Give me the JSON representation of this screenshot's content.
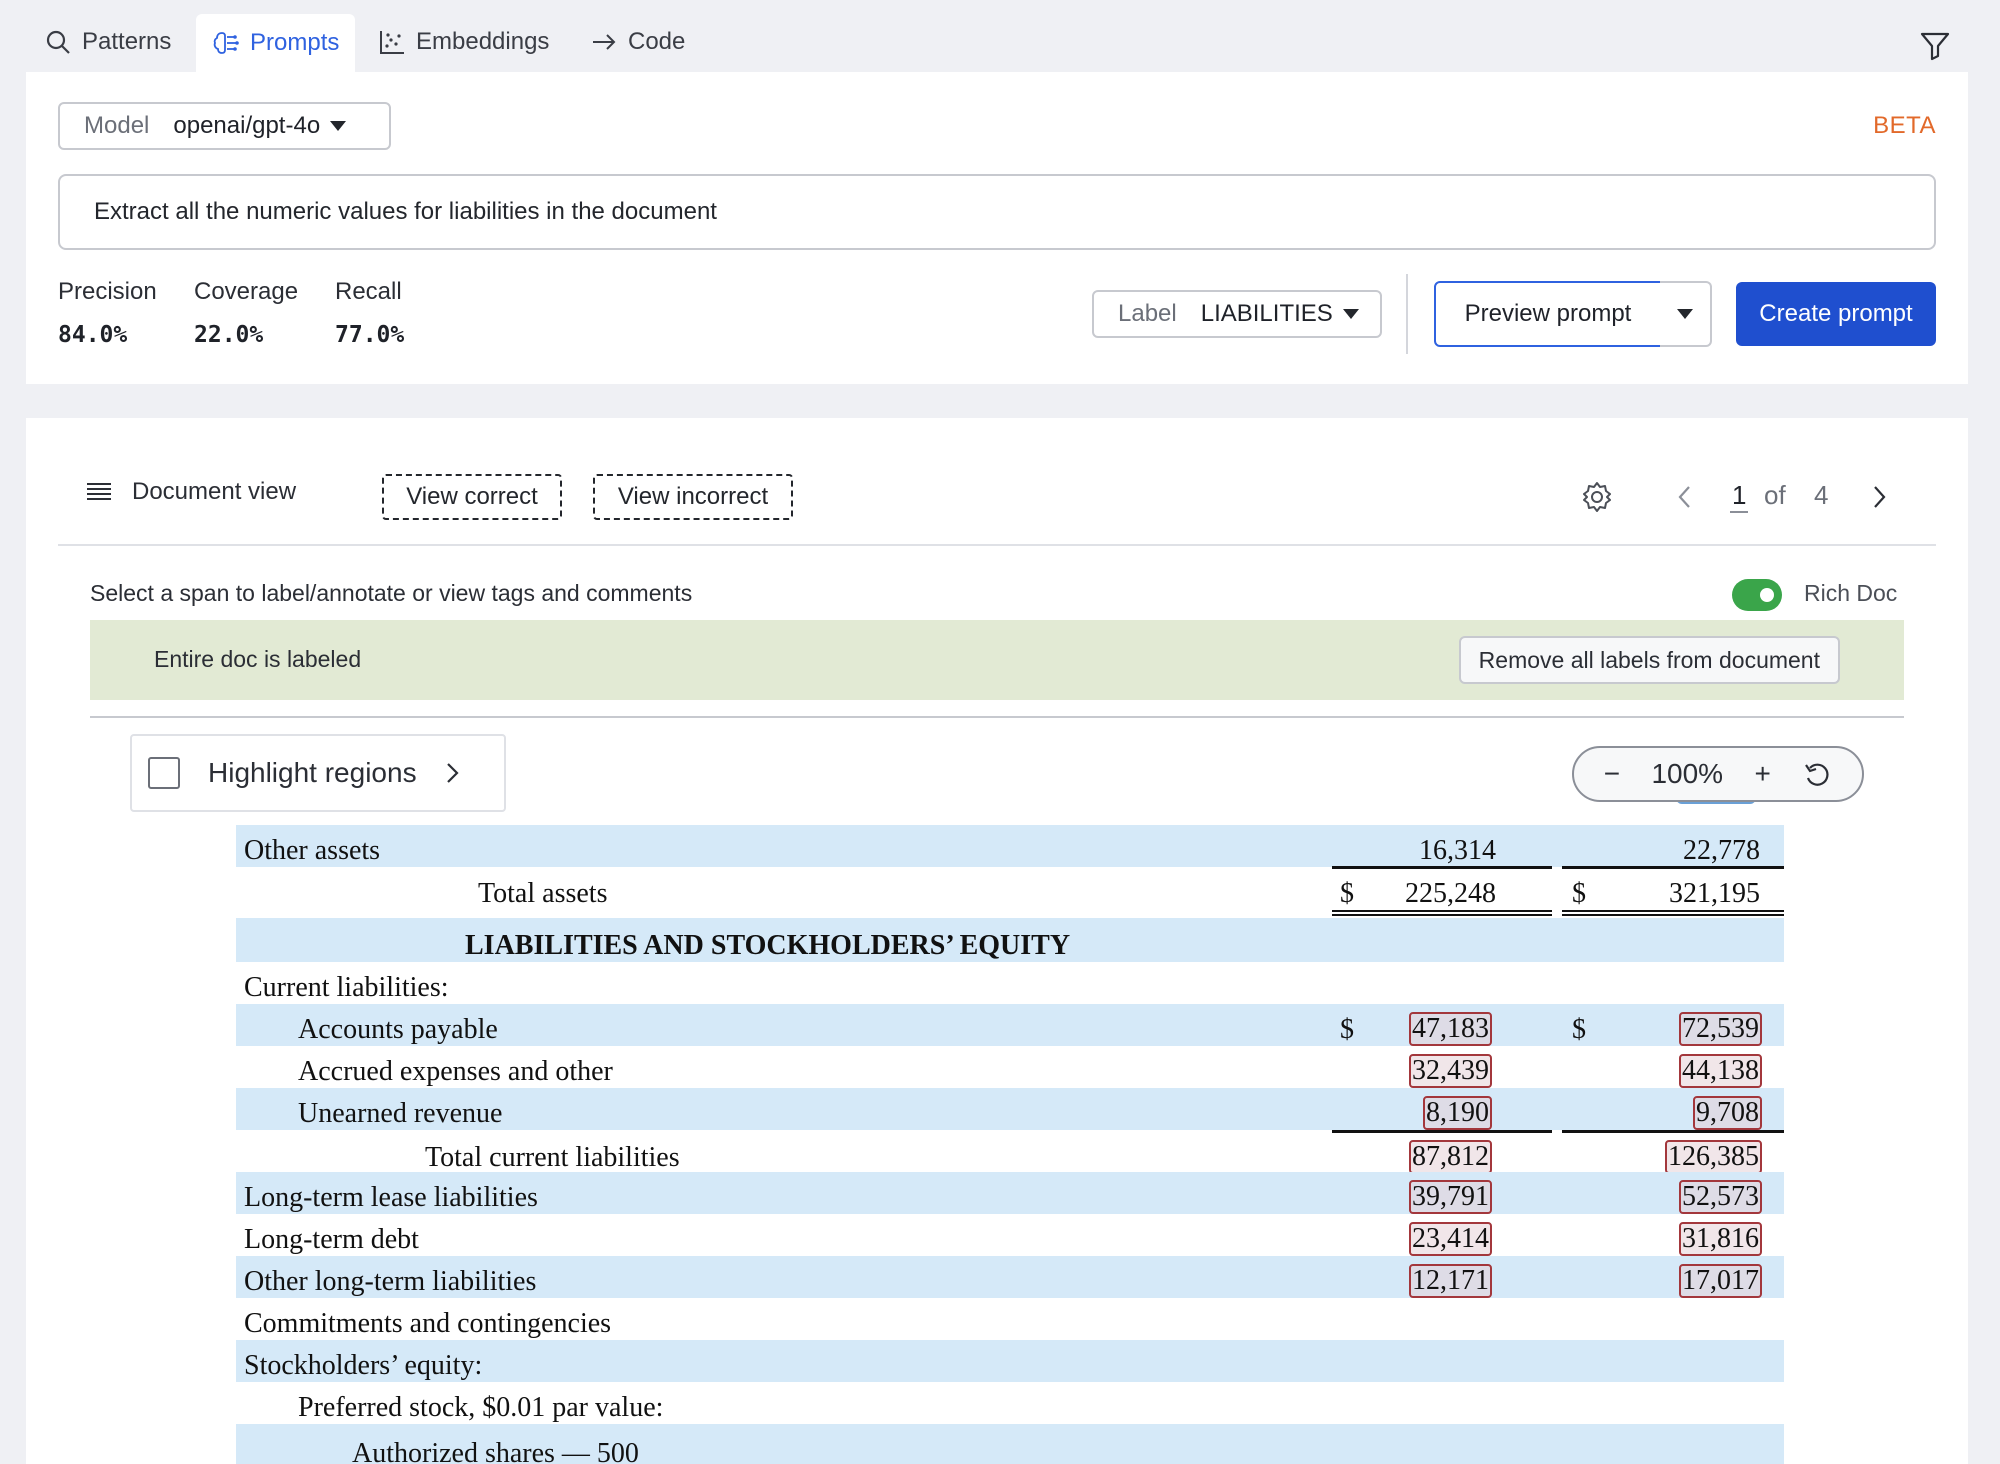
{
  "tabs": [
    {
      "label": "Patterns",
      "icon": "search-icon"
    },
    {
      "label": "Prompts",
      "icon": "brain-icon"
    },
    {
      "label": "Embeddings",
      "icon": "scatter-icon"
    },
    {
      "label": "Code",
      "icon": "arrow-right-icon"
    }
  ],
  "model": {
    "label": "Model",
    "value": "openai/gpt-4o"
  },
  "beta": "BETA",
  "prompt_text": "Extract all the numeric values for liabilities in the document",
  "metrics": [
    {
      "label": "Precision",
      "value": "84.0%"
    },
    {
      "label": "Coverage",
      "value": "22.0%"
    },
    {
      "label": "Recall",
      "value": "77.0%"
    }
  ],
  "label_select": {
    "label": "Label",
    "value": "LIABILITIES"
  },
  "buttons": {
    "preview": "Preview prompt",
    "create": "Create prompt"
  },
  "doc_toolbar": {
    "document_view": "Document view",
    "view_correct": "View correct",
    "view_incorrect": "View incorrect",
    "page_current": "1",
    "page_of": "of",
    "page_total": "4"
  },
  "select_hint": "Select a span to label/annotate or view tags and comments",
  "rich_doc": {
    "label": "Rich Doc",
    "on": true
  },
  "labeled_banner": {
    "text": "Entire doc is labeled",
    "button": "Remove all labels from document"
  },
  "highlight_regions": "Highlight regions",
  "zoom": {
    "minus": "−",
    "value": "100%",
    "plus": "+"
  },
  "document": {
    "rows": [
      {
        "label": "Other assets",
        "c1": "16,314",
        "c2": "22,778"
      },
      {
        "label": "Total assets",
        "d1": "$",
        "c1": "225,248",
        "d2": "$",
        "c2": "321,195"
      },
      {
        "label": "LIABILITIES AND STOCKHOLDERS’ EQUITY"
      },
      {
        "label": "Current liabilities:"
      },
      {
        "label": "Accounts payable",
        "d1": "$",
        "c1": "47,183",
        "d2": "$",
        "c2": "72,539"
      },
      {
        "label": "Accrued expenses and other",
        "c1": "32,439",
        "c2": "44,138"
      },
      {
        "label": "Unearned revenue",
        "c1": "8,190",
        "c2": "9,708"
      },
      {
        "label": "Total current liabilities",
        "c1": "87,812",
        "c2": "126,385"
      },
      {
        "label": "Long-term lease liabilities",
        "c1": "39,791",
        "c2": "52,573"
      },
      {
        "label": "Long-term debt",
        "c1": "23,414",
        "c2": "31,816"
      },
      {
        "label": "Other long-term liabilities",
        "c1": "12,171",
        "c2": "17,017"
      },
      {
        "label": "Commitments and contingencies"
      },
      {
        "label": "Stockholders’ equity:"
      },
      {
        "label": "Preferred stock, $0.01 par value:"
      },
      {
        "label": "Authorized shares — 500"
      }
    ]
  },
  "colors": {
    "accent": "#2f62e0",
    "primary_button": "#1f4fcf",
    "beta": "#e2692a",
    "band": "#d5e9f8",
    "label_box": "#a3373c",
    "toggle_on": "#3aa54a",
    "banner": "#e2ead4"
  }
}
